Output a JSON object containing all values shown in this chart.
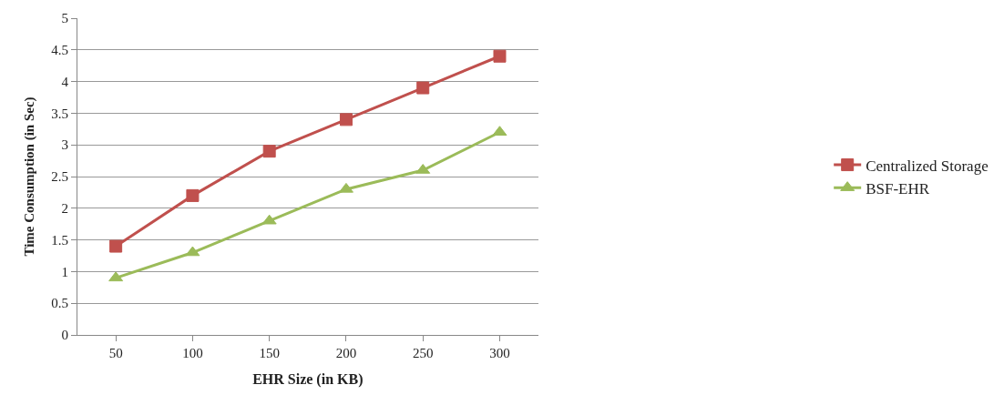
{
  "chart_data": {
    "type": "line",
    "xlabel": "EHR Size (in KB)",
    "ylabel": "Time Consumption (in Sec)",
    "categories": [
      "50",
      "100",
      "150",
      "200",
      "250",
      "300"
    ],
    "series": [
      {
        "name": "Centralized Storage",
        "color": "#c0504d",
        "marker": "square",
        "values": [
          1.4,
          2.2,
          2.9,
          3.4,
          3.9,
          4.4
        ]
      },
      {
        "name": "BSF-EHR",
        "color": "#9bbb59",
        "marker": "triangle",
        "values": [
          0.9,
          1.3,
          1.8,
          2.3,
          2.6,
          3.2
        ]
      }
    ],
    "ylim": [
      0,
      5
    ],
    "yticks": [
      0,
      0.5,
      1,
      1.5,
      2,
      2.5,
      3,
      3.5,
      4,
      4.5,
      5
    ],
    "grid": "y",
    "legend": "right"
  }
}
